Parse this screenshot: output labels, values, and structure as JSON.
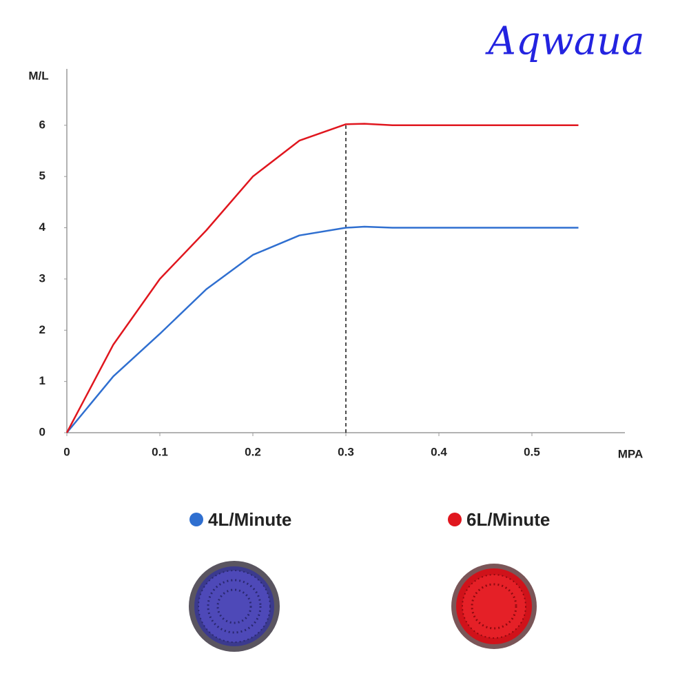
{
  "chart_data": {
    "type": "line",
    "title": "Aqwaua",
    "x_label": "MPA",
    "y_label": "M/L",
    "x": [
      0,
      0.05,
      0.1,
      0.15,
      0.2,
      0.25,
      0.3,
      0.32,
      0.35,
      0.4,
      0.45,
      0.5,
      0.55
    ],
    "series": [
      {
        "name": "4L/Minute",
        "color": "#2f6fd0",
        "values": [
          0,
          1.1,
          1.93,
          2.8,
          3.47,
          3.85,
          4.0,
          4.02,
          4.0,
          4.0,
          4.0,
          4.0,
          4.0
        ]
      },
      {
        "name": "6L/Minute",
        "color": "#e0161e",
        "values": [
          0,
          1.72,
          3.0,
          3.95,
          5.0,
          5.7,
          6.02,
          6.03,
          6.0,
          6.0,
          6.0,
          6.0,
          6.0
        ]
      }
    ],
    "vline_x": 0.3,
    "xlim": [
      0,
      0.6
    ],
    "ylim": [
      0,
      7.1
    ],
    "xticks": [
      0,
      0.1,
      0.2,
      0.3,
      0.4,
      0.5
    ],
    "yticks": [
      0,
      1,
      2,
      3,
      4,
      5,
      6
    ],
    "grid": false
  }
}
